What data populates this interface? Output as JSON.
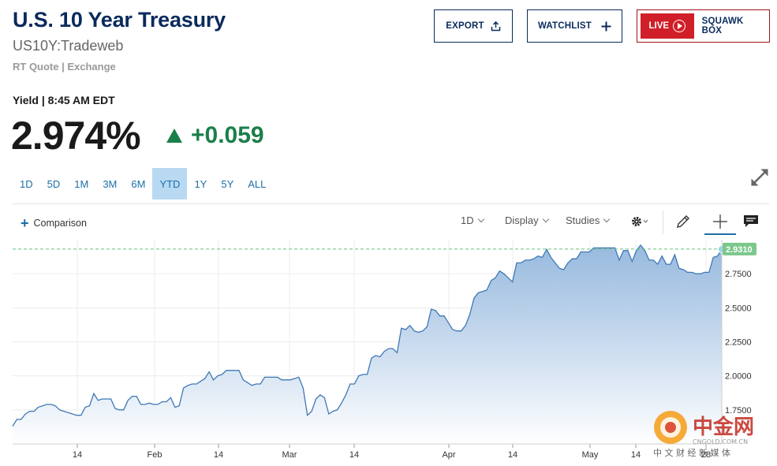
{
  "header": {
    "title": "U.S. 10 Year Treasury",
    "symbol": "US10Y:Tradeweb",
    "quote_source": "RT Quote | Exchange"
  },
  "buttons": {
    "export_label": "EXPORT",
    "watchlist_label": "WATCHLIST",
    "live_label": "LIVE",
    "squawk_label": "SQUAWK BOX"
  },
  "quote": {
    "yield_label": "Yield | 8:45 AM EDT",
    "price": "2.974%",
    "change": "+0.059",
    "change_direction": "up",
    "change_color": "#1b7f4a"
  },
  "ranges": [
    "1D",
    "5D",
    "1M",
    "3M",
    "6M",
    "YTD",
    "1Y",
    "5Y",
    "ALL"
  ],
  "active_range": "YTD",
  "toolbar": {
    "comparison_label": "Comparison",
    "interval_label": "1D",
    "display_label": "Display",
    "studies_label": "Studies",
    "icons": [
      "gear-icon",
      "pencil-icon",
      "crosshair-icon",
      "comment-icon"
    ]
  },
  "watermark": {
    "brand": "中金网",
    "domain": "CNGOLD.COM.CN",
    "tagline": "中 文 财 经 新 媒 体"
  },
  "chart_data": {
    "type": "area",
    "ylim": [
      1.5,
      3.0
    ],
    "y_ticks": [
      1.75,
      2.0,
      2.25,
      2.5,
      2.75
    ],
    "y_tick_labels": [
      "1.7500",
      "2.0000",
      "2.2500",
      "2.5000",
      "2.7500"
    ],
    "x_tick_labels": [
      "14",
      "Feb",
      "14",
      "Mar",
      "14",
      "Apr",
      "14",
      "May",
      "14",
      "28"
    ],
    "last_value": 2.931,
    "last_value_label": "2.9310",
    "grid": true,
    "fill_color": "#a9c6e4",
    "line_color": "#3f78b5",
    "series": [
      {
        "values": [
          1.63,
          1.68,
          1.68,
          1.72,
          1.74,
          1.74,
          1.77,
          1.78,
          1.79,
          1.79,
          1.78,
          1.75,
          1.74,
          1.73,
          1.72,
          1.71,
          1.71,
          1.77,
          1.78,
          1.87,
          1.82,
          1.83,
          1.83,
          1.83,
          1.76,
          1.75,
          1.75,
          1.82,
          1.85,
          1.85,
          1.79,
          1.79,
          1.8,
          1.79,
          1.79,
          1.81,
          1.81,
          1.84,
          1.77,
          1.78,
          1.91,
          1.93,
          1.94,
          1.94,
          1.96,
          1.98,
          2.03,
          1.97,
          2.0,
          2.01,
          2.04,
          2.04,
          2.04,
          2.04,
          1.97,
          1.95,
          1.93,
          1.94,
          1.94,
          1.99,
          1.99,
          1.99,
          1.99,
          1.97,
          1.97,
          1.97,
          1.98,
          1.99,
          1.91,
          1.71,
          1.74,
          1.83,
          1.86,
          1.84,
          1.72,
          1.74,
          1.75,
          1.8,
          1.86,
          1.94,
          1.94,
          2.0,
          2.01,
          2.01,
          2.13,
          2.15,
          2.14,
          2.18,
          2.2,
          2.2,
          2.17,
          2.35,
          2.34,
          2.37,
          2.33,
          2.32,
          2.33,
          2.36,
          2.49,
          2.48,
          2.44,
          2.44,
          2.39,
          2.34,
          2.33,
          2.33,
          2.37,
          2.45,
          2.57,
          2.61,
          2.62,
          2.63,
          2.7,
          2.72,
          2.77,
          2.75,
          2.72,
          2.69,
          2.83,
          2.83,
          2.85,
          2.85,
          2.86,
          2.88,
          2.87,
          2.93,
          2.87,
          2.83,
          2.79,
          2.78,
          2.83,
          2.86,
          2.86,
          2.91,
          2.91,
          2.91,
          2.94,
          2.94,
          2.94,
          2.94,
          2.94,
          2.94,
          2.85,
          2.92,
          2.92,
          2.84,
          2.92,
          2.96,
          2.92,
          2.85,
          2.85,
          2.82,
          2.88,
          2.82,
          2.82,
          2.89,
          2.79,
          2.78,
          2.76,
          2.76,
          2.75,
          2.75,
          2.76,
          2.76,
          2.87,
          2.88,
          2.93
        ]
      }
    ]
  }
}
